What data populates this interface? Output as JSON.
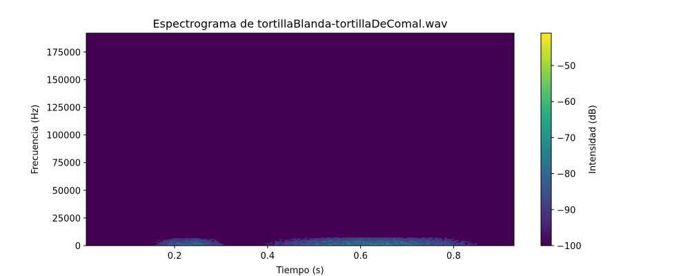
{
  "chart_data": {
    "type": "heatmap",
    "title": "Espectrograma de tortillaBlanda-tortillaDeComal.wav",
    "xlabel": "Tiempo (s)",
    "ylabel": "Frecuencia (Hz)",
    "xlim": [
      0.01,
      0.93
    ],
    "ylim": [
      0,
      192000
    ],
    "xticks": [
      0.2,
      0.4,
      0.6,
      0.8
    ],
    "xtick_labels": [
      "0.2",
      "0.4",
      "0.6",
      "0.8"
    ],
    "yticks": [
      0,
      25000,
      50000,
      75000,
      100000,
      125000,
      150000,
      175000
    ],
    "ytick_labels": [
      "0",
      "25000",
      "50000",
      "75000",
      "100000",
      "125000",
      "150000",
      "175000"
    ],
    "colormap": "viridis",
    "background_db": -100,
    "colorbar": {
      "label": "Intensidad (dB)",
      "range": [
        -100,
        -41
      ],
      "ticks": [
        -100,
        -90,
        -80,
        -70,
        -60,
        -50
      ],
      "tick_labels": [
        "−100",
        "−90",
        "−80",
        "−70",
        "−60",
        "−50"
      ]
    },
    "energy_regions": [
      {
        "t_start": 0.15,
        "t_end": 0.31,
        "f_max": 6500,
        "peak_db": -72
      },
      {
        "t_start": 0.39,
        "t_end": 0.85,
        "f_max": 7500,
        "peak_db": -68
      }
    ]
  }
}
